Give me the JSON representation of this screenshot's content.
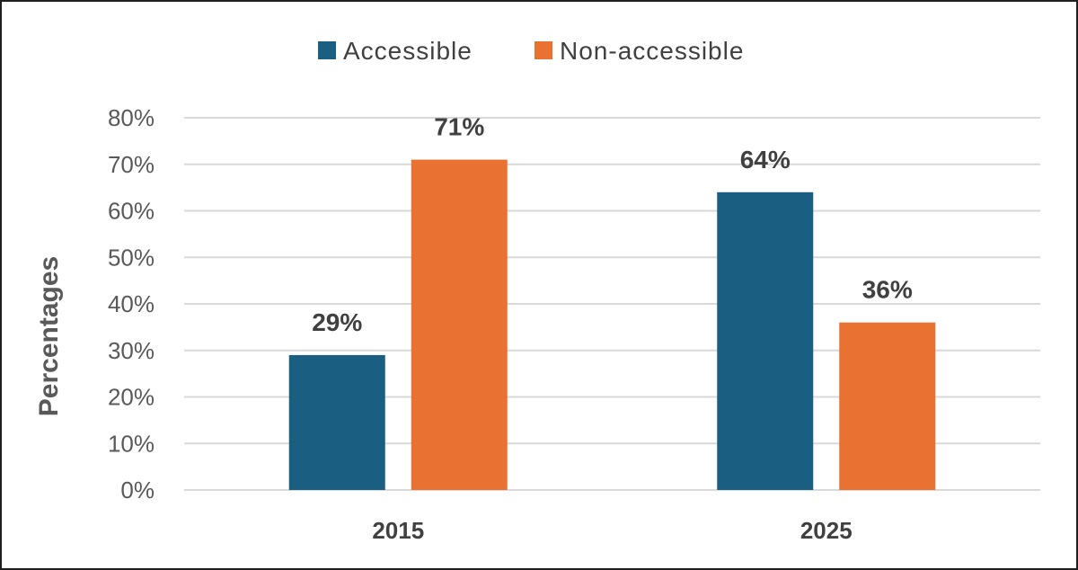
{
  "chart_data": {
    "type": "bar",
    "categories": [
      "2015",
      "2025"
    ],
    "series": [
      {
        "name": "Accessible",
        "values": [
          29,
          64
        ],
        "color": "#1a5f82",
        "labels": [
          "29%",
          "64%"
        ]
      },
      {
        "name": "Non-accessible",
        "values": [
          71,
          36
        ],
        "color": "#e97132",
        "labels": [
          "71%",
          "36%"
        ]
      }
    ],
    "ylabel": "Percentages",
    "xlabel": "",
    "ylim": [
      0,
      80
    ],
    "yticks": [
      0,
      10,
      20,
      30,
      40,
      50,
      60,
      70,
      80
    ],
    "ytick_labels": [
      "0%",
      "10%",
      "20%",
      "30%",
      "40%",
      "50%",
      "60%",
      "70%",
      "80%"
    ],
    "grid": true,
    "legend_position": "top-center"
  }
}
